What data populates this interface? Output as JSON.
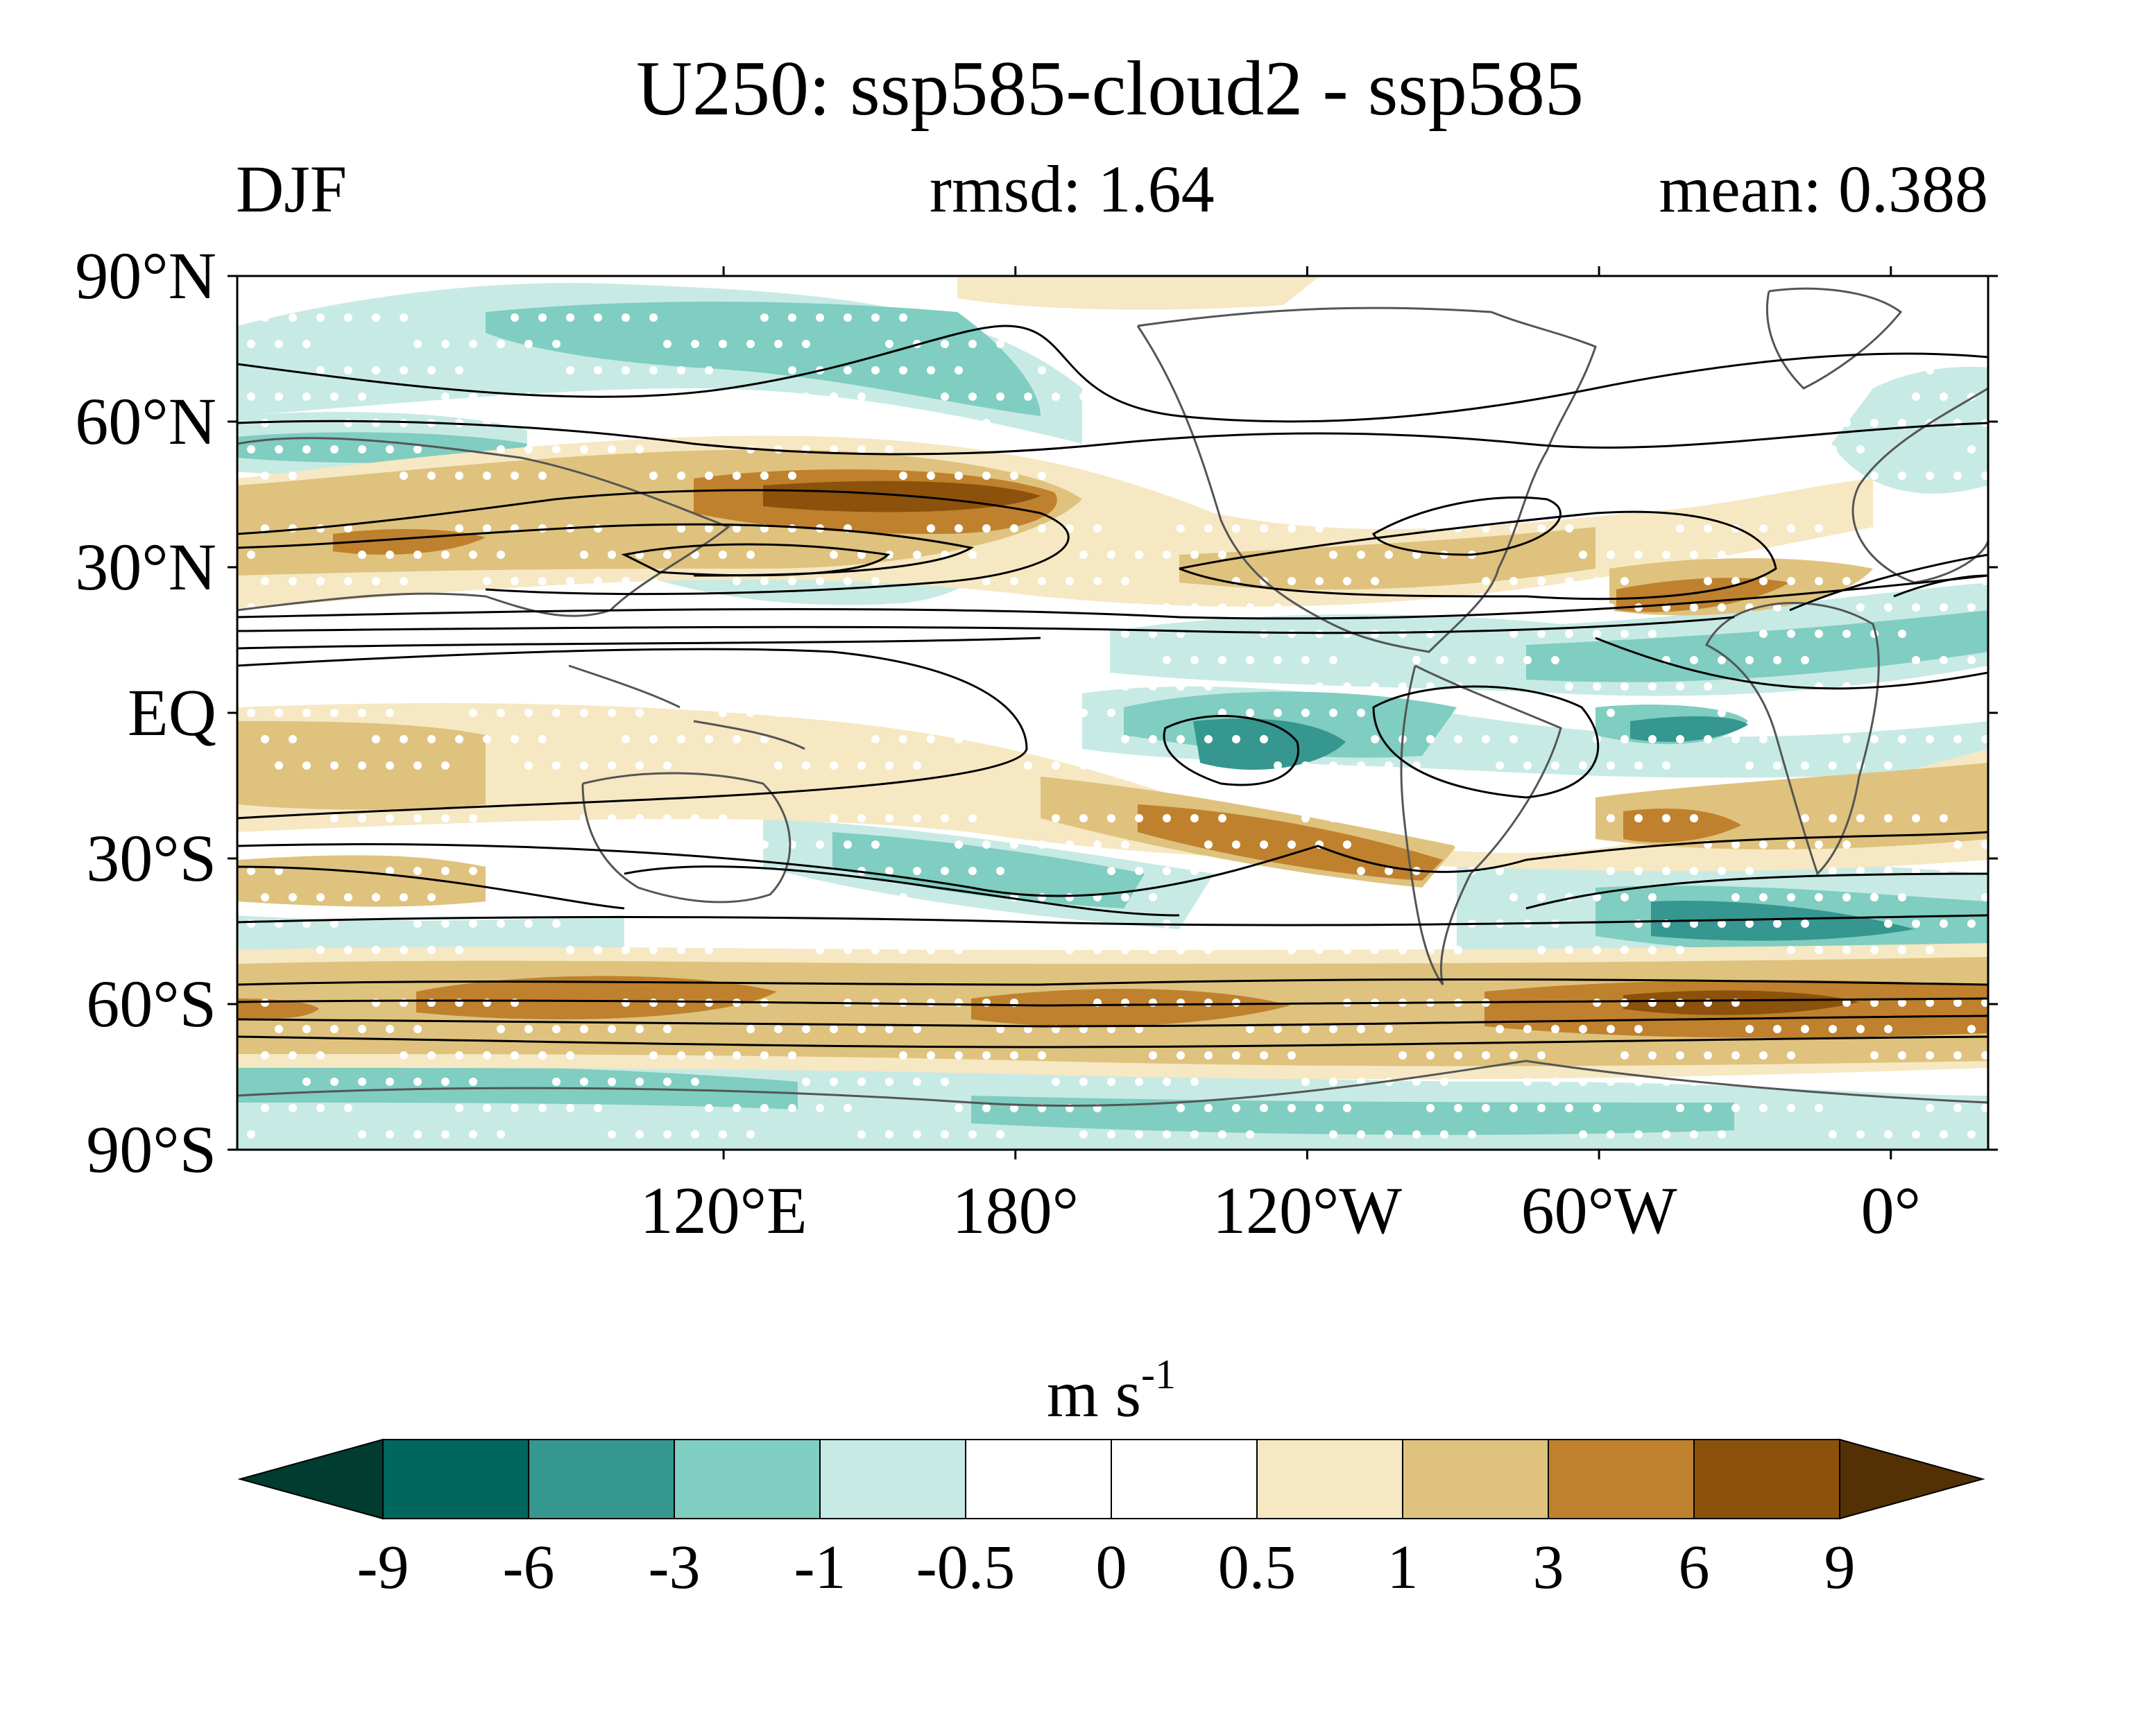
{
  "title": "U250: ssp585-cloud2 - ssp585",
  "season": "DJF",
  "stats": {
    "rmsd": "rmsd: 1.64",
    "mean": "mean: 0.388"
  },
  "map": {
    "projection": "cylindrical equidistant",
    "lon_range": [
      20,
      380
    ],
    "lat_range": [
      -90,
      90
    ],
    "lat_ticks": [
      {
        "value": 90,
        "label": "90°N"
      },
      {
        "value": 60,
        "label": "60°N"
      },
      {
        "value": 30,
        "label": "30°N"
      },
      {
        "value": 0,
        "label": "EQ"
      },
      {
        "value": -30,
        "label": "30°S"
      },
      {
        "value": -60,
        "label": "60°S"
      },
      {
        "value": -90,
        "label": "90°S"
      }
    ],
    "lon_ticks": [
      {
        "value": 120,
        "label": "120°E"
      },
      {
        "value": 180,
        "label": "180°"
      },
      {
        "value": 240,
        "label": "120°W"
      },
      {
        "value": 300,
        "label": "60°W"
      },
      {
        "value": 360,
        "label": "0°"
      }
    ],
    "stippling": "white dots mark significant differences",
    "contours": "black lines show climatological U250 jet",
    "coastline_color": "#555555"
  },
  "colorbar": {
    "unit_base": "m s",
    "unit_exp": "-1",
    "levels": [
      "-9",
      "-6",
      "-3",
      "-1",
      "-0.5",
      "0",
      "0.5",
      "1",
      "3",
      "6",
      "9"
    ],
    "colors": [
      "#003c30",
      "#01665e",
      "#35978f",
      "#80cdc1",
      "#c7eae5",
      "#ffffff",
      "#ffffff",
      "#f6e8c3",
      "#dfc27d",
      "#bf812d",
      "#8c510a",
      "#543005"
    ]
  }
}
